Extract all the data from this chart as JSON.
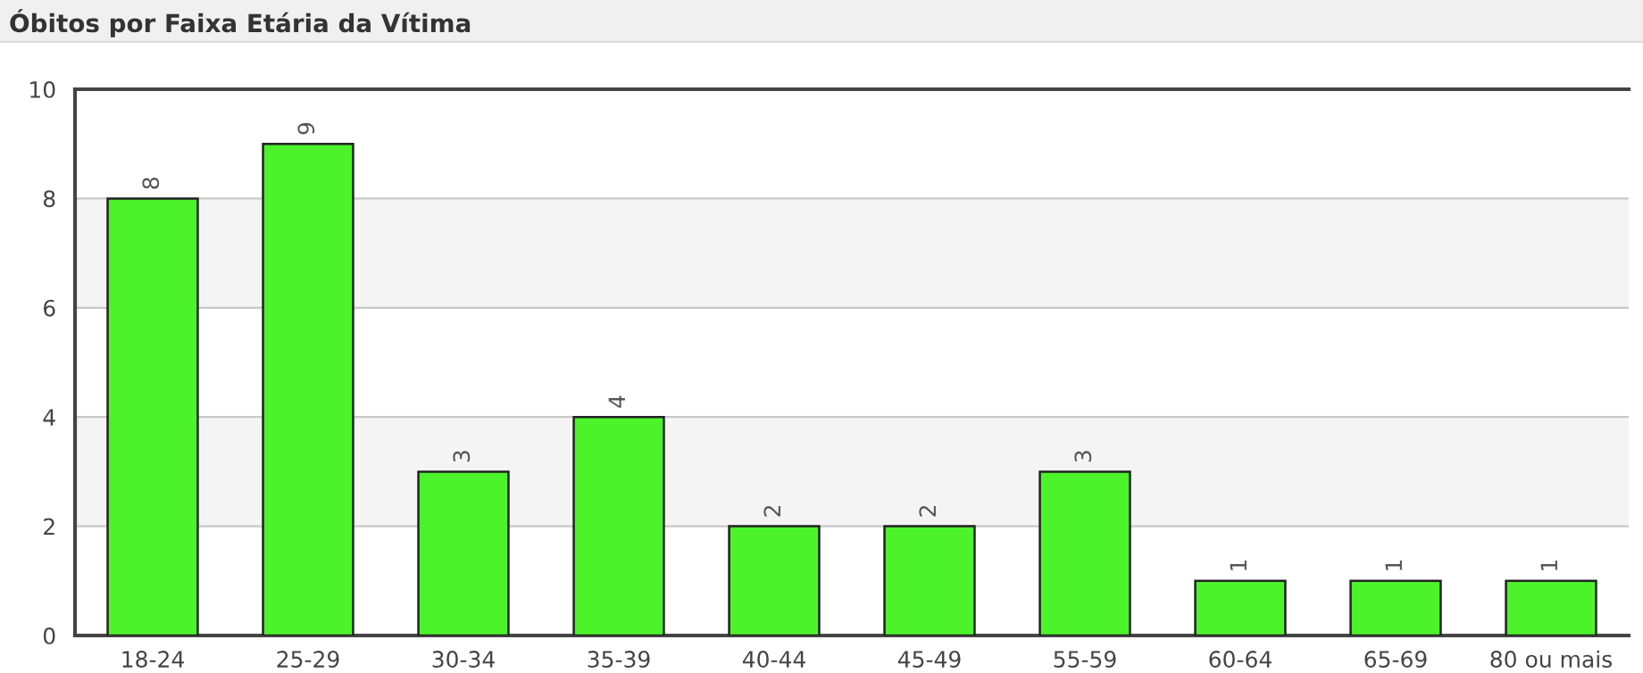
{
  "chart_data": {
    "type": "bar",
    "title": "Óbitos por Faixa Etária da Vítima",
    "categories": [
      "18-24",
      "25-29",
      "30-34",
      "35-39",
      "40-44",
      "45-49",
      "55-59",
      "60-64",
      "65-69",
      "80 ou mais"
    ],
    "values": [
      8,
      9,
      3,
      4,
      2,
      2,
      3,
      1,
      1,
      1
    ],
    "color": "#4cf32a",
    "ylim": [
      0,
      10
    ],
    "yticks": [
      0,
      2,
      4,
      6,
      8,
      10
    ],
    "grid": "y",
    "data_labels": true,
    "legend": false
  }
}
